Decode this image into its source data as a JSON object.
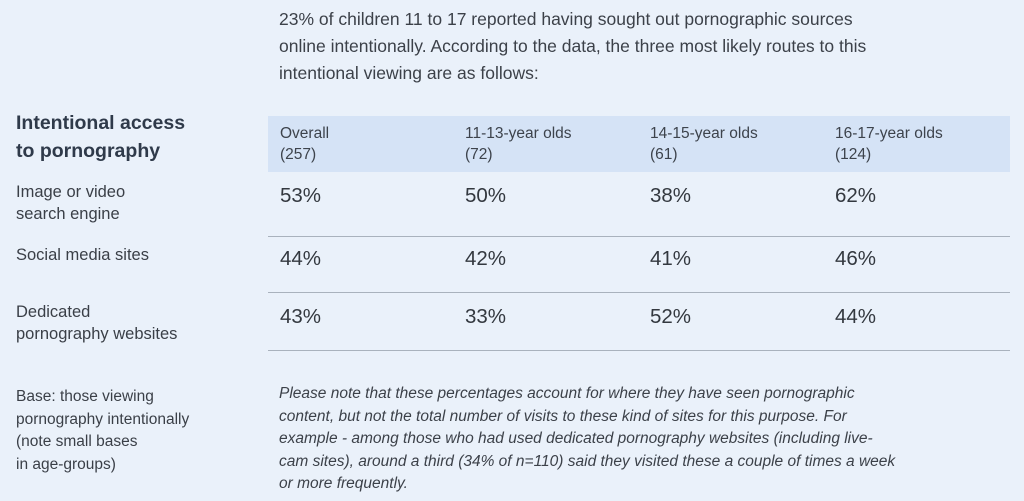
{
  "intro": {
    "line1": "23% of children 11 to 17 reported having sought out pornographic sources",
    "line2": "online intentionally. According to the data, the three most likely routes to this",
    "line3": "intentional viewing are as follows:"
  },
  "section": {
    "title_line1": "Intentional access",
    "title_line2": "to pornography"
  },
  "table": {
    "columns": [
      {
        "label": "Overall",
        "base": "(257)"
      },
      {
        "label": "11-13-year olds",
        "base": "(72)"
      },
      {
        "label": "14-15-year olds",
        "base": "(61)"
      },
      {
        "label": "16-17-year olds",
        "base": "(124)"
      }
    ],
    "rows": [
      {
        "label_line1": "Image or video",
        "label_line2": "search engine",
        "values": [
          "53%",
          "50%",
          "38%",
          "62%"
        ]
      },
      {
        "label_line1": "Social media sites",
        "label_line2": "",
        "values": [
          "44%",
          "42%",
          "41%",
          "46%"
        ]
      },
      {
        "label_line1": "Dedicated",
        "label_line2": "pornography websites",
        "values": [
          "43%",
          "33%",
          "52%",
          "44%"
        ]
      }
    ]
  },
  "base_note": {
    "line1": "Base: those viewing",
    "line2": "pornography intentionally",
    "line3": "(note small bases",
    "line4": "in age-groups)"
  },
  "foot_note": {
    "line1": "Please note that these percentages account for where they have seen pornographic",
    "line2": "content, but not the total number of visits to these kind of sites for this purpose. For",
    "line3": "example - among those who had used dedicated pornography websites (including live-",
    "line4": "cam sites), around a third (34% of n=110) said they visited these a couple of times a week",
    "line5": "or more frequently."
  }
}
